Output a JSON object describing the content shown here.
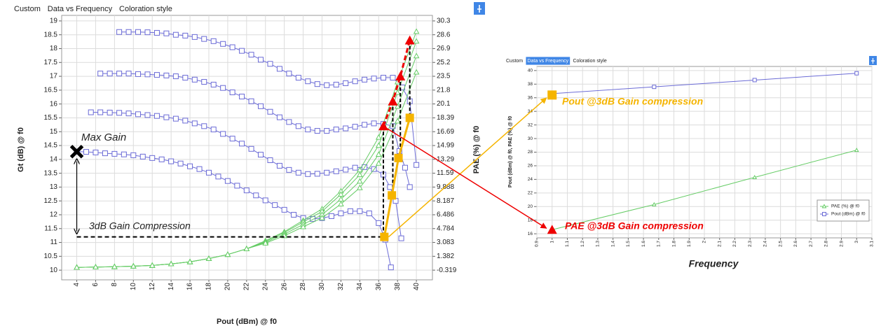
{
  "chart_data": [
    {
      "type": "line",
      "tabs": [
        "Custom",
        "Data vs Frequency",
        "Coloration style"
      ],
      "xlabel": "Pout (dBm) @ f0",
      "ylabel": "Gt (dB) @ f0",
      "y2label": "PAE (%) @ f0",
      "xlim": [
        2.4,
        41.7
      ],
      "xticks": [
        4,
        6,
        8,
        10,
        12,
        14,
        16,
        18,
        20,
        22,
        24,
        26,
        28,
        30,
        32,
        34,
        36,
        38,
        40
      ],
      "ylim": [
        9.65,
        19.2
      ],
      "yticks": [
        10,
        10.5,
        11,
        11.5,
        12,
        12.5,
        13,
        13.5,
        14,
        14.5,
        15,
        15.5,
        16,
        16.5,
        17,
        17.5,
        18,
        18.5,
        19
      ],
      "y2lim": [
        -1.51,
        30.98
      ],
      "y2ticks": [
        -0.319,
        1.382,
        3.083,
        4.784,
        6.486,
        8.187,
        9.888,
        11.59,
        13.29,
        14.99,
        16.69,
        18.39,
        20.1,
        21.8,
        23.5,
        25.2,
        26.9,
        28.6,
        30.3
      ],
      "grid": true,
      "series": [
        {
          "color": "#6b6bd6",
          "marker": "square",
          "x": [
            8.5,
            9.5,
            10.5,
            11.5,
            12.5,
            13.5,
            14.5,
            15.5,
            16.5,
            17.5,
            18.5,
            19.5,
            20.5,
            21.5,
            22.5,
            23.5,
            24.5,
            25.5,
            26.5,
            27.5,
            28.5,
            29.5,
            30.5,
            31.5,
            32.5,
            33.5,
            34.5,
            35.5,
            36.5,
            37.5,
            38.5,
            39.3,
            40
          ],
          "values": [
            18.6,
            18.6,
            18.6,
            18.59,
            18.57,
            18.55,
            18.5,
            18.47,
            18.42,
            18.35,
            18.27,
            18.17,
            18.05,
            17.92,
            17.78,
            17.6,
            17.45,
            17.27,
            17.1,
            16.95,
            16.82,
            16.72,
            16.68,
            16.7,
            16.75,
            16.82,
            16.88,
            16.92,
            16.95,
            16.95,
            16.6,
            16.1,
            13.8
          ]
        },
        {
          "color": "#6b6bd6",
          "marker": "square",
          "x": [
            6.5,
            7.5,
            8.5,
            9.5,
            10.5,
            11.5,
            12.5,
            13.5,
            14.5,
            15.5,
            16.5,
            17.5,
            18.5,
            19.5,
            20.5,
            21.5,
            22.5,
            23.5,
            24.5,
            25.5,
            26.5,
            27.5,
            28.5,
            29.5,
            30.5,
            31.5,
            32.5,
            33.5,
            34.5,
            35.5,
            36.5,
            37.5,
            38.2,
            38.8,
            39.3
          ],
          "values": [
            17.1,
            17.1,
            17.1,
            17.1,
            17.08,
            17.07,
            17.05,
            17.03,
            17.0,
            16.95,
            16.88,
            16.8,
            16.7,
            16.58,
            16.42,
            16.27,
            16.1,
            15.92,
            15.72,
            15.52,
            15.35,
            15.2,
            15.08,
            15.03,
            15.03,
            15.08,
            15.12,
            15.18,
            15.25,
            15.3,
            15.28,
            15.2,
            14.3,
            13.7,
            13.0
          ]
        },
        {
          "color": "#6b6bd6",
          "marker": "square",
          "x": [
            5.5,
            6.5,
            7.5,
            8.5,
            9.5,
            10.5,
            11.5,
            12.5,
            13.5,
            14.5,
            15.5,
            16.5,
            17.5,
            18.5,
            19.5,
            20.5,
            21.5,
            22.5,
            23.5,
            24.5,
            25.5,
            26.5,
            27.5,
            28.5,
            29.5,
            30.5,
            31.5,
            32.5,
            33.5,
            34.5,
            35.5,
            36.5,
            37.2,
            37.8,
            38.4
          ],
          "values": [
            15.7,
            15.7,
            15.69,
            15.68,
            15.66,
            15.63,
            15.6,
            15.57,
            15.52,
            15.47,
            15.4,
            15.3,
            15.2,
            15.08,
            14.92,
            14.75,
            14.57,
            14.38,
            14.17,
            13.97,
            13.77,
            13.62,
            13.52,
            13.47,
            13.48,
            13.52,
            13.57,
            13.63,
            13.7,
            13.72,
            13.65,
            13.45,
            13.0,
            12.5,
            11.15
          ]
        },
        {
          "color": "#6b6bd6",
          "marker": "square",
          "x": [
            4,
            5,
            6,
            7,
            8,
            9,
            10,
            11,
            12,
            13,
            14,
            15,
            16,
            17,
            18,
            19,
            20,
            21,
            22,
            23,
            24,
            25,
            26,
            27,
            28,
            29,
            30,
            31,
            32,
            33,
            34,
            35,
            36,
            36.7,
            37.3
          ],
          "values": [
            14.28,
            14.27,
            14.25,
            14.22,
            14.2,
            14.18,
            14.15,
            14.1,
            14.05,
            14.0,
            13.93,
            13.85,
            13.75,
            13.65,
            13.52,
            13.38,
            13.22,
            13.05,
            12.88,
            12.7,
            12.52,
            12.35,
            12.18,
            12.0,
            11.88,
            11.85,
            11.88,
            11.95,
            12.05,
            12.13,
            12.13,
            12.05,
            11.7,
            11.1,
            10.1
          ]
        },
        {
          "color": "#66cc66",
          "marker": "triangle",
          "axis": "y2",
          "x": [
            4,
            6,
            8,
            10,
            12,
            14,
            16,
            18,
            20,
            22,
            24,
            26,
            28,
            30,
            32,
            34,
            36,
            38,
            40
          ],
          "values": [
            0.02,
            0.06,
            0.1,
            0.17,
            0.26,
            0.45,
            0.7,
            1.1,
            1.6,
            2.3,
            3.3,
            4.4,
            5.8,
            7.2,
            9.4,
            12.0,
            16.0,
            22.8,
            29.0
          ]
        },
        {
          "color": "#66cc66",
          "marker": "triangle",
          "axis": "y2",
          "x": [
            4,
            6,
            8,
            10,
            12,
            14,
            16,
            18,
            20,
            22,
            24,
            26,
            28,
            30,
            32,
            34,
            36,
            38,
            40
          ],
          "values": [
            0.02,
            0.06,
            0.1,
            0.17,
            0.26,
            0.45,
            0.7,
            1.1,
            1.6,
            2.3,
            3.2,
            4.3,
            5.6,
            6.9,
            9.0,
            11.4,
            15.0,
            21.5,
            27.8
          ]
        },
        {
          "color": "#66cc66",
          "marker": "triangle",
          "axis": "y2",
          "x": [
            4,
            6,
            8,
            10,
            12,
            14,
            16,
            18,
            20,
            22,
            24,
            26,
            28,
            30,
            32,
            34,
            36,
            38,
            40
          ],
          "values": [
            0.02,
            0.06,
            0.1,
            0.17,
            0.26,
            0.45,
            0.7,
            1.1,
            1.6,
            2.3,
            3.1,
            4.1,
            5.3,
            6.5,
            8.4,
            10.6,
            13.9,
            19.8,
            26.0
          ]
        },
        {
          "color": "#66cc66",
          "marker": "triangle",
          "axis": "y2",
          "x": [
            4,
            6,
            8,
            10,
            12,
            14,
            16,
            18,
            20,
            22,
            24,
            26,
            28,
            30,
            32,
            34,
            36,
            38,
            40
          ],
          "values": [
            0.02,
            0.06,
            0.1,
            0.17,
            0.26,
            0.45,
            0.7,
            1.1,
            1.6,
            2.3,
            3.0,
            3.9,
            5.0,
            6.1,
            7.8,
            9.8,
            12.8,
            18.0,
            24.0
          ]
        }
      ],
      "gain_compression_points": {
        "color": "#f5b400",
        "x": [
          36.6,
          37.4,
          38.1,
          39.3
        ],
        "values": [
          11.2,
          12.7,
          14.05,
          15.5
        ]
      },
      "pae_compression_points": {
        "color": "#ee0000",
        "axis": "y2",
        "x": [
          36.5,
          37.5,
          38.3,
          39.3
        ],
        "values": [
          17.37,
          20.43,
          23.5,
          27.92
        ]
      },
      "max_gain_point": {
        "x": 4,
        "value": 14.28
      },
      "annotations": [
        "Max Gain",
        "3dB Gain Compression"
      ]
    },
    {
      "type": "line",
      "tabs": [
        "Custom",
        "Data vs Frequency",
        "Coloration style"
      ],
      "active_tab": 1,
      "xlabel": "Frequency",
      "ylabel": "Pout (dBm) @ f0, PAE (%) @ f0",
      "xlim": [
        0.9,
        3.1
      ],
      "xticks": [
        0.9,
        1,
        1.1,
        1.2,
        1.3,
        1.4,
        1.5,
        1.6,
        1.7,
        1.8,
        1.9,
        2,
        2.1,
        2.2,
        2.3,
        2.4,
        2.5,
        2.6,
        2.7,
        2.8,
        2.9,
        3,
        3.1
      ],
      "ylim": [
        15.4,
        40.6
      ],
      "yticks": [
        16,
        18,
        20,
        22,
        24,
        26,
        28,
        30,
        32,
        34,
        36,
        38,
        40
      ],
      "grid": true,
      "legend": "lower right",
      "series": [
        {
          "name": "PAE (%) @ f0",
          "color": "#66cc66",
          "marker": "triangle",
          "x": [
            1,
            1.67,
            2.33,
            3
          ],
          "values": [
            16.6,
            20.3,
            24.3,
            28.3
          ]
        },
        {
          "name": "Pout (dBm) @ f0",
          "color": "#6b6bd6",
          "marker": "square",
          "x": [
            1,
            1.67,
            2.33,
            3
          ],
          "values": [
            36.6,
            37.6,
            38.6,
            39.6
          ]
        }
      ],
      "gain_compression_points": {
        "color": "#f5b400",
        "x": [
          1
        ],
        "values": [
          36.4
        ]
      },
      "pae_compression_points": {
        "color": "#ee0000",
        "x": [
          1
        ],
        "values": [
          16.6
        ]
      },
      "annotations": [
        "Pout @3dB Gain compression",
        "PAE @3dB Gain compression"
      ]
    }
  ]
}
